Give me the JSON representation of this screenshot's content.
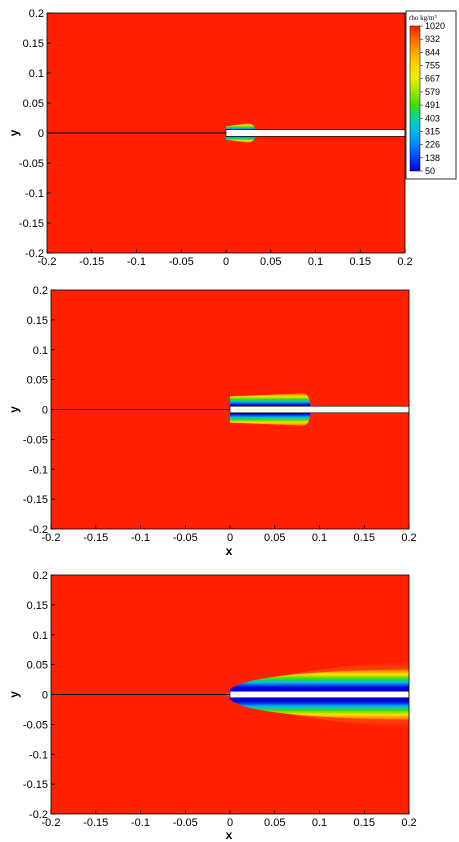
{
  "chart_data": [
    {
      "type": "heatmap",
      "xlabel": "",
      "ylabel": "y",
      "xlim": [
        -0.2,
        0.2
      ],
      "ylim": [
        -0.2,
        0.2
      ],
      "x_ticks": [
        "-0.2",
        "-0.15",
        "-0.1",
        "-0.05",
        "0",
        "0.05",
        "0.1",
        "0.15",
        "0.2"
      ],
      "y_ticks": [
        "0.2",
        "0.15",
        "0.1",
        "0.05",
        "0",
        "-0.05",
        "-0.1",
        "-0.15",
        "-0.2"
      ],
      "background_value": 1020,
      "tube": {
        "x_start": 0.0,
        "x_end": 0.2,
        "half_height": 0.0055
      },
      "cavity": {
        "x_end": 0.033,
        "half_height": 0.016
      },
      "centerline": {
        "x_start": -0.2,
        "x_end": 0.0
      },
      "legend": {
        "title": "rho kg/m³",
        "levels": [
          "1020",
          "932",
          "844",
          "755",
          "667",
          "579",
          "491",
          "403",
          "315",
          "226",
          "138",
          "50"
        ],
        "colors": [
          "#ff2000",
          "#ff6a00",
          "#ffa800",
          "#ffd800",
          "#e8f000",
          "#9ce800",
          "#3ee000",
          "#00d8a8",
          "#00b8f0",
          "#0088ff",
          "#0040ff",
          "#0000e0"
        ],
        "position": "top-right"
      }
    },
    {
      "type": "heatmap",
      "xlabel": "x",
      "ylabel": "y",
      "xlim": [
        -0.2,
        0.2
      ],
      "ylim": [
        -0.2,
        0.2
      ],
      "x_ticks": [
        "-0.2",
        "-0.15",
        "-0.1",
        "-0.05",
        "0",
        "0.05",
        "0.1",
        "0.15",
        "0.2"
      ],
      "y_ticks": [
        "0.2",
        "0.15",
        "0.1",
        "0.05",
        "0",
        "-0.05",
        "-0.1",
        "-0.15",
        "-0.2"
      ],
      "background_value": 1020,
      "tube": {
        "x_start": 0.0,
        "x_end": 0.2,
        "half_height": 0.0055
      },
      "cavity": {
        "x_end": 0.09,
        "half_height": 0.027
      },
      "centerline": {
        "x_start": -0.2,
        "x_end": 0.0
      }
    },
    {
      "type": "heatmap",
      "xlabel": "x",
      "ylabel": "y",
      "xlim": [
        -0.2,
        0.2
      ],
      "ylim": [
        -0.2,
        0.2
      ],
      "x_ticks": [
        "-0.2",
        "-0.15",
        "-0.1",
        "-0.05",
        "0",
        "0.05",
        "0.1",
        "0.15",
        "0.2"
      ],
      "y_ticks": [
        "0.2",
        "0.15",
        "0.1",
        "0.05",
        "0",
        "-0.05",
        "-0.1",
        "-0.15",
        "-0.2"
      ],
      "background_value": 1020,
      "tube": {
        "x_start": 0.0,
        "x_end": 0.2,
        "half_height": 0.0055
      },
      "cavity": {
        "x_end": 0.2,
        "half_height": 0.042
      },
      "centerline": {
        "x_start": -0.2,
        "x_end": 0.0
      }
    }
  ]
}
